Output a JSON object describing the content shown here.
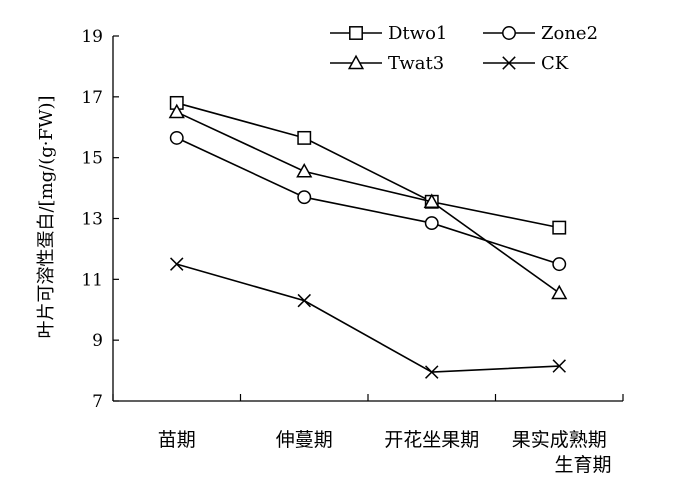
{
  "chart_data": {
    "type": "line",
    "title": "",
    "xlabel": "生育期",
    "ylabel": "叶片可溶性蛋白/[mg/(g·FW)]",
    "ylim": [
      7,
      19
    ],
    "yticks": [
      7,
      9,
      11,
      13,
      15,
      17,
      19
    ],
    "categories": [
      "苗期",
      "伸蔓期",
      "开花坐果期",
      "果实成熟期"
    ],
    "grid": false,
    "legend_position": "top-right",
    "series": [
      {
        "name": "Dtwo1",
        "marker": "square",
        "values": [
          16.8,
          15.65,
          13.55,
          12.7
        ]
      },
      {
        "name": "Zone2",
        "marker": "circle",
        "values": [
          15.65,
          13.7,
          12.85,
          11.5
        ]
      },
      {
        "name": "Twat3",
        "marker": "triangle",
        "values": [
          16.5,
          14.55,
          13.55,
          10.55
        ]
      },
      {
        "name": "CK",
        "marker": "x",
        "values": [
          11.5,
          10.3,
          7.95,
          8.15
        ]
      }
    ],
    "colors": {
      "line": "#000000",
      "background": "#ffffff"
    }
  }
}
